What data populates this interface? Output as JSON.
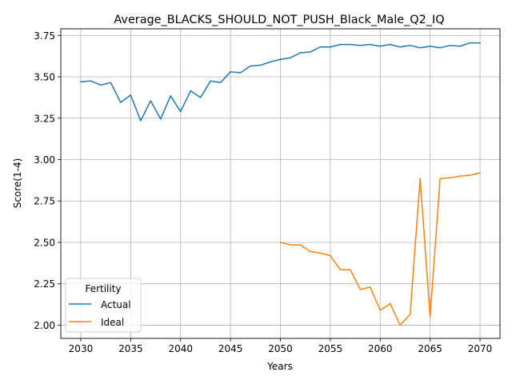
{
  "chart_data": {
    "type": "line",
    "title": "Average_BLACKS_SHOULD_NOT_PUSH_Black_Male_Q2_IQ",
    "xlabel": "Years",
    "ylabel": "Score(1-4)",
    "xlim": [
      2028,
      2072
    ],
    "ylim": [
      1.92,
      3.79
    ],
    "xticks": [
      2030,
      2035,
      2040,
      2045,
      2050,
      2055,
      2060,
      2065,
      2070
    ],
    "yticks": [
      2.0,
      2.25,
      2.5,
      2.75,
      3.0,
      3.25,
      3.5,
      3.75
    ],
    "xtick_labels": [
      "2030",
      "2035",
      "2040",
      "2045",
      "2050",
      "2055",
      "2060",
      "2065",
      "2070"
    ],
    "ytick_labels": [
      "2.00",
      "2.25",
      "2.50",
      "2.75",
      "3.00",
      "3.25",
      "3.50",
      "3.75"
    ],
    "grid": true,
    "legend": {
      "title": "Fertility",
      "placement": "lower-left"
    },
    "series": [
      {
        "name": "Actual",
        "color": "#1f77b4",
        "x": [
          2030,
          2031,
          2032,
          2033,
          2034,
          2035,
          2036,
          2037,
          2038,
          2039,
          2040,
          2041,
          2042,
          2043,
          2044,
          2045,
          2046,
          2047,
          2048,
          2049,
          2050,
          2051,
          2052,
          2053,
          2054,
          2055,
          2056,
          2057,
          2058,
          2059,
          2060,
          2061,
          2062,
          2063,
          2064,
          2065,
          2066,
          2067,
          2068,
          2069,
          2070
        ],
        "values": [
          3.47,
          3.475,
          3.45,
          3.465,
          3.345,
          3.39,
          3.235,
          3.355,
          3.245,
          3.385,
          3.29,
          3.415,
          3.375,
          3.475,
          3.465,
          3.53,
          3.525,
          3.565,
          3.57,
          3.59,
          3.605,
          3.615,
          3.645,
          3.65,
          3.68,
          3.68,
          3.695,
          3.695,
          3.69,
          3.695,
          3.685,
          3.695,
          3.68,
          3.69,
          3.675,
          3.685,
          3.675,
          3.69,
          3.685,
          3.705,
          3.705
        ]
      },
      {
        "name": "Ideal",
        "color": "#ff7f0e",
        "x": [
          2050,
          2051,
          2052,
          2053,
          2054,
          2055,
          2056,
          2057,
          2058,
          2059,
          2060,
          2061,
          2062,
          2063,
          2064,
          2065,
          2066,
          2067,
          2068,
          2069,
          2070
        ],
        "values": [
          2.5,
          2.485,
          2.485,
          2.445,
          2.435,
          2.42,
          2.335,
          2.335,
          2.215,
          2.23,
          2.09,
          2.13,
          2.0,
          2.065,
          2.885,
          2.05,
          2.885,
          2.89,
          2.9,
          2.905,
          2.92
        ]
      }
    ]
  }
}
